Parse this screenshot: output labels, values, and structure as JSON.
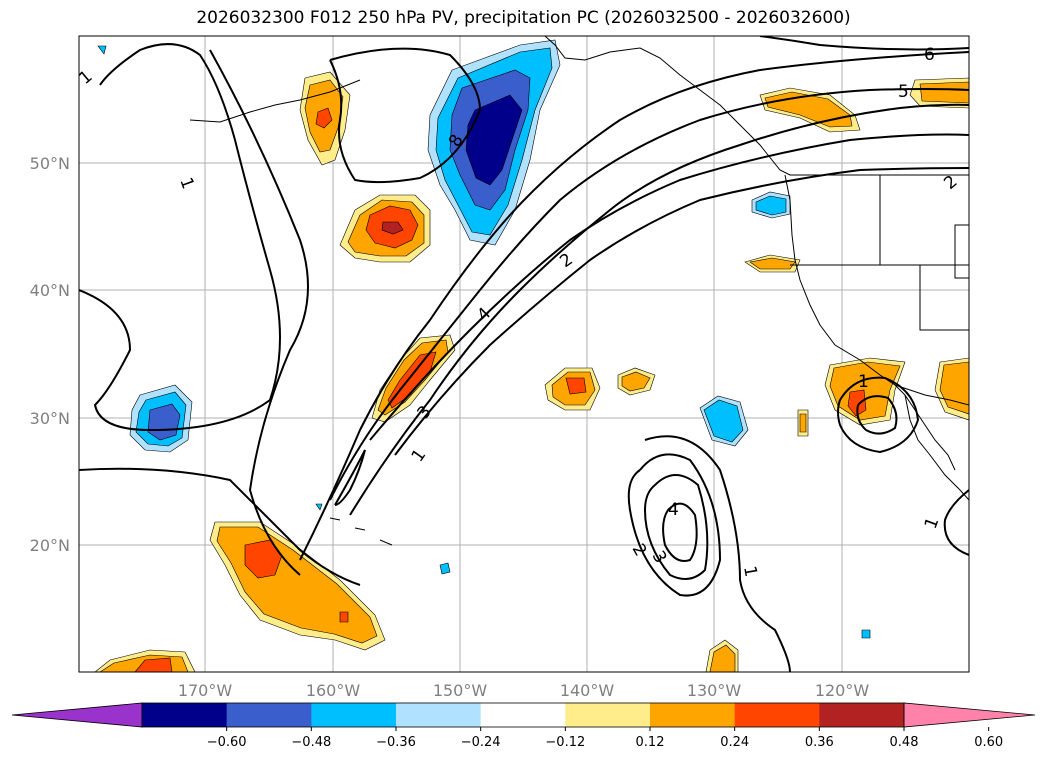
{
  "title": "2026032300 F012 250 hPa PV, precipitation PC (2026032500 - 2026032600)",
  "map": {
    "extent": {
      "lon": [
        -180,
        -110
      ],
      "lat": [
        10,
        60
      ]
    },
    "grid": true,
    "lat_labels": [
      "20°N",
      "30°N",
      "40°N",
      "50°N"
    ],
    "lon_labels": [
      "170°W",
      "160°W",
      "150°W",
      "140°W",
      "130°W",
      "120°W"
    ],
    "contour_labels": [
      "1",
      "1",
      "2",
      "3",
      "4",
      "5",
      "6",
      "8",
      "1",
      "2",
      "3",
      "4",
      "1",
      "1",
      "1",
      "2"
    ]
  },
  "colorbar": {
    "colors": [
      "#9933cc",
      "#00008b",
      "#3a5fcd",
      "#00bfff",
      "#b0e2ff",
      "#ffffff",
      "#ffec8b",
      "#ffa500",
      "#ff4500",
      "#b22222",
      "#ff82ab"
    ],
    "tick_labels": [
      "−0.60",
      "−0.48",
      "−0.36",
      "−0.24",
      "−0.12",
      "0.12",
      "0.24",
      "0.36",
      "0.48",
      "0.60"
    ]
  }
}
